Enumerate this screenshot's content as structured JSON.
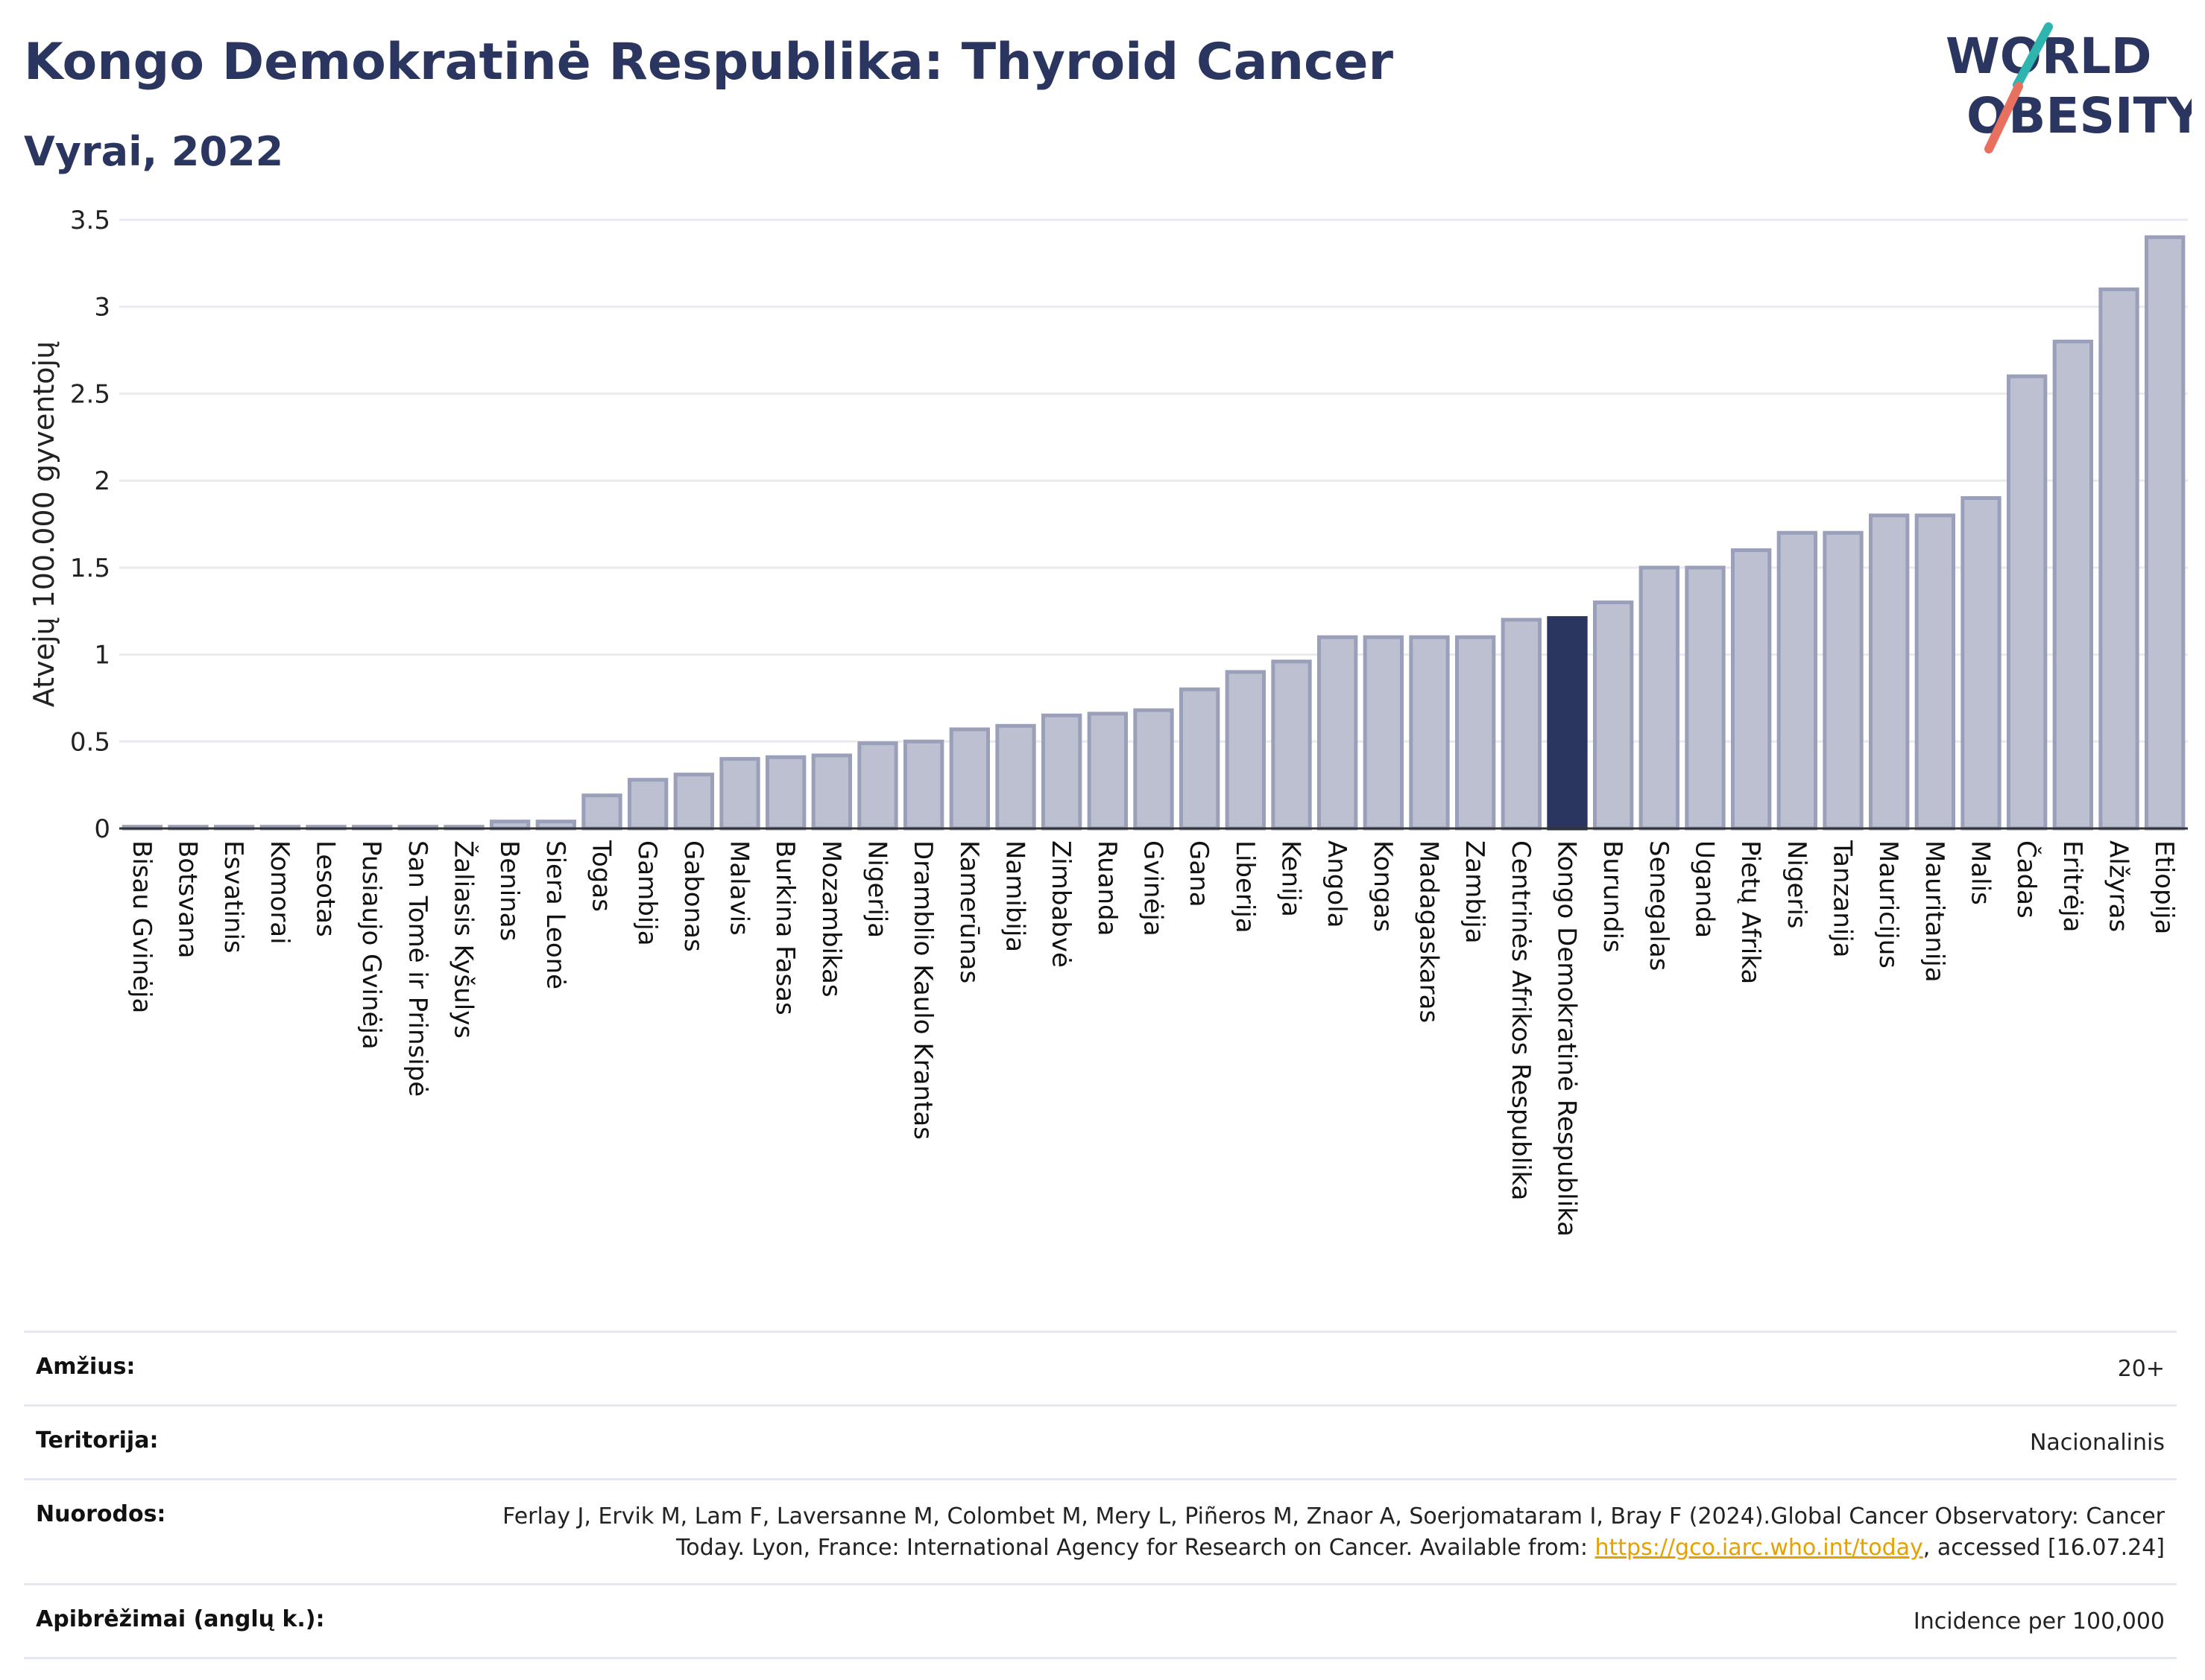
{
  "header": {
    "title": "Kongo Demokratinė Respublika: Thyroid Cancer",
    "subtitle": "Vyrai, 2022"
  },
  "logo": {
    "line1": "WORLD",
    "line2": "OBESITY",
    "colors": {
      "text": "#2b3660",
      "slash_top": "#2fb5b0",
      "slash_bottom": "#e8705f"
    }
  },
  "colors": {
    "bar": "#bcc0d0",
    "bar_edge": "#9aa0ba",
    "highlight": "#2b3660",
    "grid": "#e9eaf0"
  },
  "chart_data": {
    "type": "bar",
    "ylabel": "Atvejų 100.000 gyventojų",
    "xlabel": "",
    "ylim": [
      0,
      3.5
    ],
    "yticks": [
      0,
      0.5,
      1,
      1.5,
      2,
      2.5,
      3,
      3.5
    ],
    "ytick_labels": [
      "0",
      "0.5",
      "1",
      "1.5",
      "2",
      "2.5",
      "3",
      "3.5"
    ],
    "grid": true,
    "highlight": "Kongo Demokratinė Respublika",
    "categories": [
      "Bisau Gvinėja",
      "Botsvana",
      "Esvatinis",
      "Komorai",
      "Lesotas",
      "Pusiaujo Gvinėja",
      "San Tomė ir Prinsipė",
      "Žaliasis Kyšulys",
      "Beninas",
      "Siera Leonė",
      "Togas",
      "Gambija",
      "Gabonas",
      "Malavis",
      "Burkina Fasas",
      "Mozambikas",
      "Nigerija",
      "Dramblio Kaulo Krantas",
      "Kamerūnas",
      "Namibija",
      "Zimbabvė",
      "Ruanda",
      "Gvinėja",
      "Gana",
      "Liberija",
      "Kenija",
      "Angola",
      "Kongas",
      "Madagaskaras",
      "Zambija",
      "Centrinės Afrikos Respublika",
      "Kongo Demokratinė Respublika",
      "Burundis",
      "Senegalas",
      "Uganda",
      "Pietų Afrika",
      "Nigeris",
      "Tanzanija",
      "Mauricijus",
      "Mauritanija",
      "Malis",
      "Čadas",
      "Eritrėja",
      "Alžyras",
      "Etiopija"
    ],
    "values": [
      0.01,
      0.01,
      0.01,
      0.01,
      0.01,
      0.01,
      0.01,
      0.01,
      0.04,
      0.04,
      0.19,
      0.28,
      0.31,
      0.4,
      0.41,
      0.42,
      0.49,
      0.5,
      0.57,
      0.59,
      0.65,
      0.66,
      0.68,
      0.8,
      0.9,
      0.96,
      1.1,
      1.1,
      1.1,
      1.1,
      1.2,
      1.21,
      1.3,
      1.5,
      1.5,
      1.6,
      1.7,
      1.7,
      1.8,
      1.8,
      1.9,
      2.6,
      2.8,
      3.1,
      3.4
    ]
  },
  "details": [
    {
      "key": "Amžius:",
      "value": "20+"
    },
    {
      "key": "Teritorija:",
      "value": "Nacionalinis"
    },
    {
      "key": "Nuorodos:",
      "value_pre": "Ferlay J, Ervik M, Lam F, Laversanne M, Colombet M, Mery L, Piñeros M, Znaor A, Soerjomataram I, Bray F (2024).Global Cancer Observatory: Cancer Today. Lyon, France: International Agency for Research on Cancer. Available from: ",
      "link": "https://gco.iarc.who.int/today",
      "value_post": ", accessed [16.07.24]"
    },
    {
      "key": "Apibrėžimai (anglų k.):",
      "value": "Incidence per 100,000"
    }
  ]
}
